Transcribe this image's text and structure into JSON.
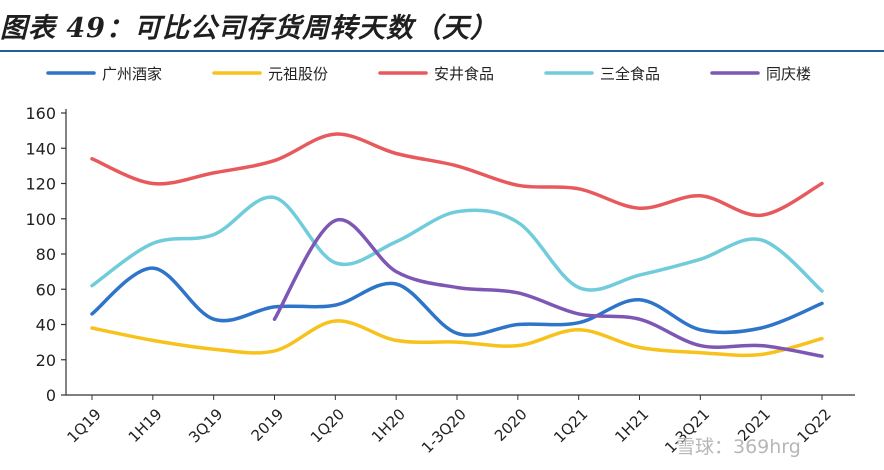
{
  "header": {
    "title": "图表 49：可比公司存货周转天数（天）"
  },
  "watermark": {
    "text": "雪球：369hrg"
  },
  "chart_data": {
    "type": "line",
    "title": "图表 49：可比公司存货周转天数（天）",
    "xlabel": "",
    "ylabel": "",
    "ylim": [
      0,
      160
    ],
    "yticks": [
      0,
      20,
      40,
      60,
      80,
      100,
      120,
      140,
      160
    ],
    "grid": false,
    "legend_position": "top",
    "categories": [
      "1Q19",
      "1H19",
      "3Q19",
      "2019",
      "1Q20",
      "1H20",
      "1-3Q20",
      "2020",
      "1Q21",
      "1H21",
      "1-3Q21",
      "2021",
      "1Q22"
    ],
    "series": [
      {
        "name": "广州酒家",
        "color": "#2e75c9",
        "values": [
          46,
          72,
          43,
          50,
          51,
          63,
          35,
          40,
          41,
          54,
          37,
          38,
          52
        ]
      },
      {
        "name": "元祖股份",
        "color": "#f8c21c",
        "values": [
          38,
          31,
          26,
          25,
          42,
          31,
          30,
          28,
          37,
          27,
          24,
          23,
          32
        ]
      },
      {
        "name": "安井食品",
        "color": "#e8595d",
        "values": [
          134,
          120,
          126,
          133,
          148,
          137,
          130,
          119,
          117,
          106,
          113,
          102,
          120
        ]
      },
      {
        "name": "三全食品",
        "color": "#70ccdb",
        "values": [
          62,
          86,
          91,
          112,
          75,
          87,
          104,
          98,
          61,
          68,
          77,
          88,
          59
        ]
      },
      {
        "name": "同庆楼",
        "color": "#7e57b5",
        "values": [
          null,
          null,
          null,
          43,
          99,
          70,
          61,
          58,
          46,
          43,
          28,
          28,
          22
        ]
      }
    ]
  }
}
